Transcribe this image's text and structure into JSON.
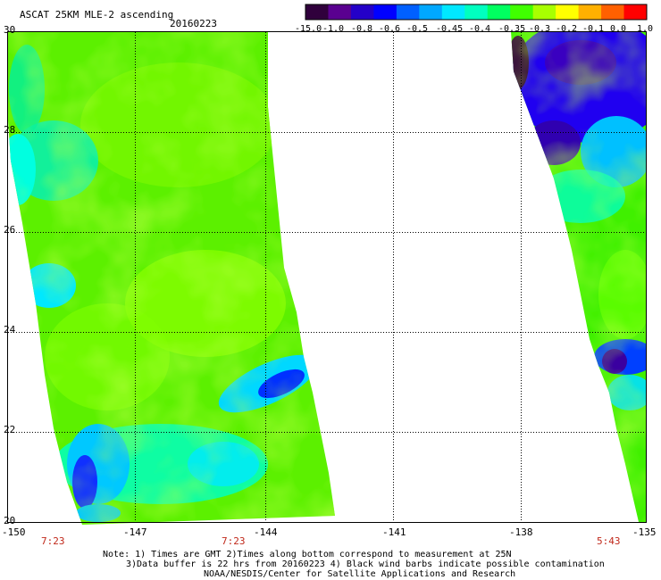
{
  "title": "ASCAT 25KM MLE-2 ascending",
  "date": "20160223",
  "colorbar": {
    "colors": [
      "#30003c",
      "#5a0090",
      "#2400c8",
      "#0000ff",
      "#0060ff",
      "#00a8ff",
      "#00e8ff",
      "#00ffc0",
      "#00ff60",
      "#40ff00",
      "#a8ff00",
      "#ffff00",
      "#ffb000",
      "#ff6000",
      "#ff0000"
    ],
    "labels": [
      "-15.0",
      "-1.0",
      "-0.8",
      "-0.6",
      "-0.5",
      "-0.45",
      "-0.4",
      "-0.35",
      "-0.3",
      "-0.2",
      "-0.1",
      "0.0",
      "1.0"
    ]
  },
  "lat_labels": [
    "30",
    "28",
    "26",
    "24",
    "22",
    "20"
  ],
  "lon_labels": [
    "-150",
    "-147",
    "-144",
    "-141",
    "-138",
    "-135"
  ],
  "times": [
    "7:23",
    "7:23",
    "5:43"
  ],
  "notes": [
    "Note: 1) Times are GMT 2)Times along bottom correspond to measurement at 25N",
    "3)Data buffer is 22 hrs from 20160223 4) Black wind barbs indicate possible contamination",
    "NOAA/NESDIS/Center for Satellite Applications and Research"
  ],
  "chart_data": {
    "type": "heatmap",
    "title": "ASCAT 25KM MLE-2 ascending",
    "date": "20160223",
    "x_axis": {
      "label": "",
      "ticks": [
        -150,
        -147,
        -144,
        -141,
        -138,
        -135
      ],
      "range": [
        -150,
        -135
      ]
    },
    "y_axis": {
      "label": "",
      "ticks": [
        20,
        22,
        24,
        26,
        28,
        30
      ],
      "range": [
        20,
        30
      ]
    },
    "colorscale": [
      "-15.0",
      "-1.0",
      "-0.8",
      "-0.6",
      "-0.5",
      "-0.45",
      "-0.4",
      "-0.35",
      "-0.3",
      "-0.2",
      "-0.1",
      "0.0",
      "1.0"
    ],
    "grid": true,
    "swaths": [
      {
        "time": "7:23",
        "dominant_range": "-0.35 to -0.2",
        "low_values_near": [
          {
            "lon": -146,
            "lat": 21
          },
          {
            "lon": -143.5,
            "lat": 23
          }
        ]
      },
      {
        "time": "5:43",
        "dominant_range": "-0.35 to -0.3",
        "low_values_near": [
          {
            "lon": -137,
            "lat": 29.5
          },
          {
            "lon": -136,
            "lat": 23.5
          }
        ]
      }
    ]
  }
}
